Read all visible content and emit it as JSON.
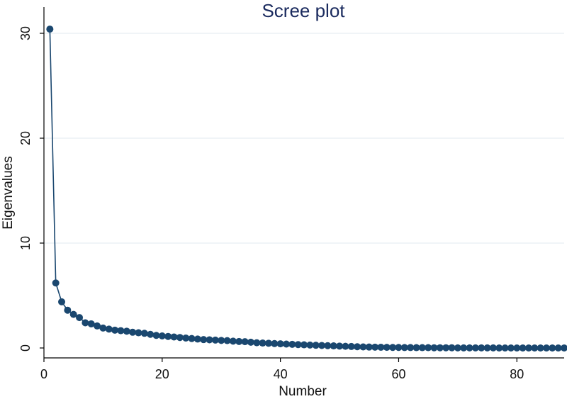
{
  "chart_data": {
    "type": "line",
    "title": "Scree plot",
    "xlabel": "Number",
    "ylabel": "Eigenvalues",
    "xlim": [
      0,
      88
    ],
    "ylim": [
      0,
      30
    ],
    "x_ticks": [
      0,
      20,
      40,
      60,
      80
    ],
    "y_ticks": [
      0,
      10,
      20,
      30
    ],
    "grid": true,
    "colors": {
      "series": "#1a476f",
      "grid": "#e6eef2",
      "axis": "#000000",
      "title": "#1a2a5e"
    },
    "series": [
      {
        "x": [
          1,
          2,
          3,
          4,
          5,
          6,
          7,
          8,
          9,
          10,
          11,
          12,
          13,
          14,
          15,
          16,
          17,
          18,
          19,
          20,
          21,
          22,
          23,
          24,
          25,
          26,
          27,
          28,
          29,
          30,
          31,
          32,
          33,
          34,
          35,
          36,
          37,
          38,
          39,
          40,
          41,
          42,
          43,
          44,
          45,
          46,
          47,
          48,
          49,
          50,
          51,
          52,
          53,
          54,
          55,
          56,
          57,
          58,
          59,
          60,
          61,
          62,
          63,
          64,
          65,
          66,
          67,
          68,
          69,
          70,
          71,
          72,
          73,
          74,
          75,
          76,
          77,
          78,
          79,
          80,
          81,
          82,
          83,
          84,
          85,
          86,
          87,
          88
        ],
        "values": [
          30.4,
          6.2,
          4.4,
          3.6,
          3.2,
          2.9,
          2.4,
          2.3,
          2.1,
          1.9,
          1.8,
          1.7,
          1.65,
          1.6,
          1.5,
          1.45,
          1.4,
          1.3,
          1.2,
          1.15,
          1.1,
          1.05,
          1.0,
          0.95,
          0.9,
          0.85,
          0.8,
          0.78,
          0.75,
          0.72,
          0.7,
          0.65,
          0.62,
          0.6,
          0.55,
          0.5,
          0.47,
          0.45,
          0.42,
          0.4,
          0.37,
          0.35,
          0.32,
          0.3,
          0.28,
          0.26,
          0.24,
          0.22,
          0.2,
          0.18,
          0.16,
          0.14,
          0.12,
          0.1,
          0.09,
          0.08,
          0.07,
          0.06,
          0.05,
          0.05,
          0.04,
          0.04,
          0.03,
          0.03,
          0.03,
          0.02,
          0.02,
          0.02,
          0.02,
          0.01,
          0.01,
          0.01,
          0.01,
          0.01,
          0.01,
          0.01,
          0.0,
          0.0,
          0.0,
          0.0,
          0.0,
          0.0,
          0.0,
          0.0,
          0.0,
          0.0,
          0.0,
          0.0
        ]
      }
    ]
  }
}
